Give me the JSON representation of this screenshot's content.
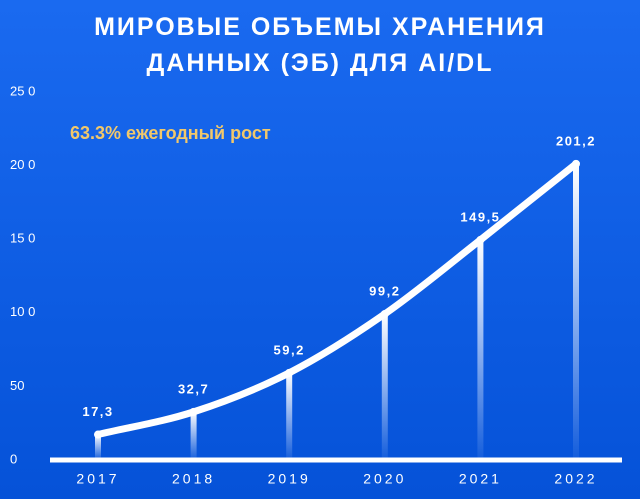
{
  "chart_data": {
    "type": "line",
    "title": "МИРОВЫЕ ОБЪЕМЫ ХРАНЕНИЯ ДАННЫХ (ЭБ) ДЛЯ AI/DL",
    "annotation": "63.3% ежегодный рост",
    "categories": [
      "2017",
      "2018",
      "2019",
      "2020",
      "2021",
      "2022"
    ],
    "values": [
      17.3,
      32.7,
      59.2,
      99.2,
      149.5,
      201.2
    ],
    "value_labels": [
      "17,3",
      "32,7",
      "59,2",
      "99,2",
      "149,5",
      "201,2"
    ],
    "color": "#ffffff",
    "ylim": [
      0,
      250
    ],
    "yticks": [
      0,
      50,
      {
        "value": 100,
        "label": "10 0"
      },
      {
        "value": 150,
        "label": "15 0"
      },
      {
        "value": 200,
        "label": "20 0"
      },
      {
        "value": 250,
        "label": "25 0"
      }
    ]
  }
}
